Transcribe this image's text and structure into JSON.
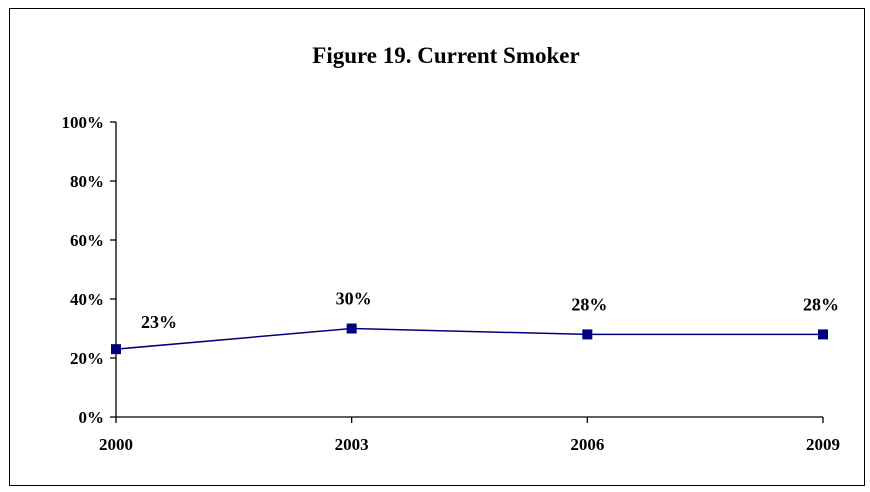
{
  "chart_data": {
    "type": "line",
    "title": "Figure 19. Current Smoker",
    "x": [
      "2000",
      "2003",
      "2006",
      "2009"
    ],
    "series": [
      {
        "values": [
          23,
          30,
          28,
          28
        ],
        "labels": [
          "23%",
          "30%",
          "28%",
          "28%"
        ],
        "color": "#000080"
      }
    ],
    "yticks": [
      "0%",
      "20%",
      "40%",
      "60%",
      "80%",
      "100%"
    ],
    "ylim": [
      0,
      100
    ],
    "grid": false,
    "legend": "none"
  }
}
